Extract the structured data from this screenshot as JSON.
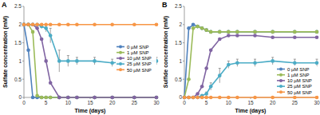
{
  "chart_data": [
    {
      "type": "line",
      "title": "A",
      "x_label": "Time (days)",
      "y_label": "Sulfate concentration (mM)",
      "x": [
        0,
        1,
        2,
        3,
        4,
        5,
        6,
        8,
        10,
        12,
        16,
        20,
        25,
        30
      ],
      "xlim": [
        0,
        30
      ],
      "xticks": [
        0,
        5,
        10,
        15,
        20,
        25,
        30
      ],
      "ylim": [
        0,
        2.5
      ],
      "yticks": [
        0,
        0.5,
        1,
        1.5,
        2,
        2.5
      ],
      "legend": "right",
      "marker": "circle",
      "series": [
        {
          "name": "0 µM SNP",
          "color": "#4f81bd",
          "values": [
            2.0,
            1.3,
            0,
            0,
            0,
            0,
            0,
            0,
            0,
            0,
            0,
            0,
            0,
            0
          ]
        },
        {
          "name": "1 µM SNP",
          "color": "#9bbb59",
          "values": [
            2.0,
            2.0,
            1.8,
            0.05,
            0,
            0,
            0,
            0,
            0,
            0,
            0,
            0,
            0,
            0
          ]
        },
        {
          "name": "10 µM SNP",
          "color": "#8064a2",
          "values": [
            2.0,
            2.0,
            2.0,
            1.9,
            1.6,
            1.0,
            0.4,
            0,
            0,
            0,
            0,
            0,
            0,
            0
          ]
        },
        {
          "name": "25 µM SNP",
          "color": "#4bacc6",
          "values": [
            2.0,
            2.0,
            2.0,
            2.0,
            1.95,
            1.9,
            1.7,
            1.0,
            1.0,
            1.0,
            1.0,
            0.95,
            1.0,
            1.0
          ],
          "errors": [
            0,
            0,
            0,
            0,
            0.05,
            0.1,
            0.2,
            0.3,
            0.15,
            0.1,
            0.1,
            0.1,
            0.1,
            0.1
          ]
        },
        {
          "name": "50 µM SNP",
          "color": "#f79646",
          "values": [
            2.0,
            2.0,
            2.0,
            2.0,
            2.0,
            2.0,
            2.0,
            2.0,
            2.0,
            2.0,
            2.0,
            2.0,
            2.0,
            2.0
          ]
        }
      ]
    },
    {
      "type": "line",
      "title": "B",
      "x_label": "Time (days)",
      "y_label": "Sulfide concentration (mM)",
      "x": [
        0,
        1,
        2,
        3,
        4,
        5,
        6,
        8,
        10,
        12,
        16,
        20,
        25,
        30
      ],
      "xlim": [
        0,
        30
      ],
      "xticks": [
        0,
        5,
        10,
        15,
        20,
        25,
        30
      ],
      "ylim": [
        0,
        2.5
      ],
      "yticks": [
        0,
        0.5,
        1,
        1.5,
        2,
        2.5
      ],
      "legend": "lower right",
      "marker": "circle",
      "series": [
        {
          "name": "0 µM SNP",
          "color": "#4f81bd",
          "values": [
            0,
            1.9,
            2.0,
            1.95,
            1.9,
            1.85,
            1.8,
            1.8,
            1.8,
            1.8,
            1.8,
            1.8,
            1.8,
            1.8
          ]
        },
        {
          "name": "1 µM SNP",
          "color": "#9bbb59",
          "values": [
            0,
            0.5,
            1.9,
            1.95,
            1.9,
            1.85,
            1.8,
            1.8,
            1.8,
            1.8,
            1.8,
            1.8,
            1.8,
            1.8
          ]
        },
        {
          "name": "10 µM SNP",
          "color": "#8064a2",
          "values": [
            0,
            0,
            0,
            0.1,
            0.3,
            0.8,
            1.3,
            1.6,
            1.7,
            1.7,
            1.7,
            1.65,
            1.65,
            1.65
          ]
        },
        {
          "name": "25 µM SNP",
          "color": "#4bacc6",
          "values": [
            0,
            0,
            0,
            0,
            0.05,
            0.1,
            0.3,
            0.6,
            0.9,
            0.95,
            0.95,
            1.0,
            0.95,
            0.95
          ],
          "errors": [
            0,
            0,
            0,
            0,
            0.02,
            0.05,
            0.1,
            0.2,
            0.1,
            0.1,
            0.1,
            0.1,
            0.1,
            0.1
          ]
        },
        {
          "name": "50 µM SNP",
          "color": "#f79646",
          "values": [
            0,
            0,
            0,
            0,
            0,
            0,
            0,
            0,
            0,
            0,
            0,
            0,
            0,
            0
          ]
        }
      ]
    }
  ]
}
